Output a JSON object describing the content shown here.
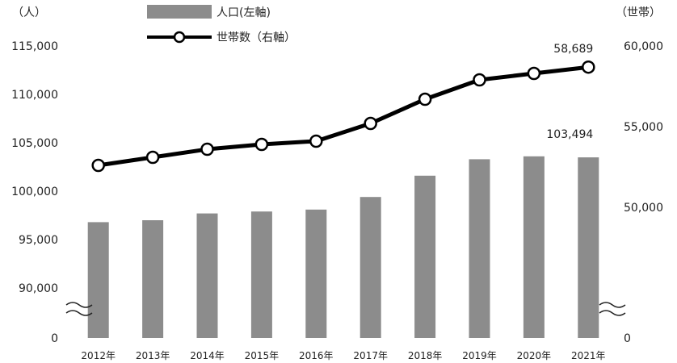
{
  "chart_data": {
    "type": "bar+line",
    "categories": [
      "2012年",
      "2013年",
      "2014年",
      "2015年",
      "2016年",
      "2017年",
      "2018年",
      "2019年",
      "2020年",
      "2021年"
    ],
    "series": [
      {
        "name": "人口(左軸)",
        "type": "bar",
        "axis": "left",
        "color": "#8c8c8c",
        "values": [
          96800,
          97000,
          97700,
          97900,
          98100,
          99400,
          101600,
          103300,
          103600,
          103494
        ]
      },
      {
        "name": "世帯数（右軸）",
        "type": "line",
        "axis": "right",
        "color": "#000000",
        "values": [
          52600,
          53100,
          53600,
          53900,
          54100,
          55200,
          56700,
          57900,
          58300,
          58689
        ]
      }
    ],
    "left_axis": {
      "unit_label": "（人）",
      "ticks": [
        "0",
        "90,000",
        "95,000",
        "100,000",
        "105,000",
        "110,000",
        "115,000"
      ],
      "range": [
        90000,
        115000
      ],
      "broken": true
    },
    "right_axis": {
      "unit_label": "（世帯）",
      "ticks": [
        "0",
        "50,000",
        "55,000",
        "60,000"
      ],
      "range": [
        45000,
        60000
      ],
      "broken": true
    },
    "data_labels": [
      {
        "series": "人口(左軸)",
        "category": "2021年",
        "text": "103,494"
      },
      {
        "series": "世帯数（右軸）",
        "category": "2021年",
        "text": "58,689"
      }
    ],
    "legend": {
      "position": "top-center"
    },
    "grid": false
  }
}
